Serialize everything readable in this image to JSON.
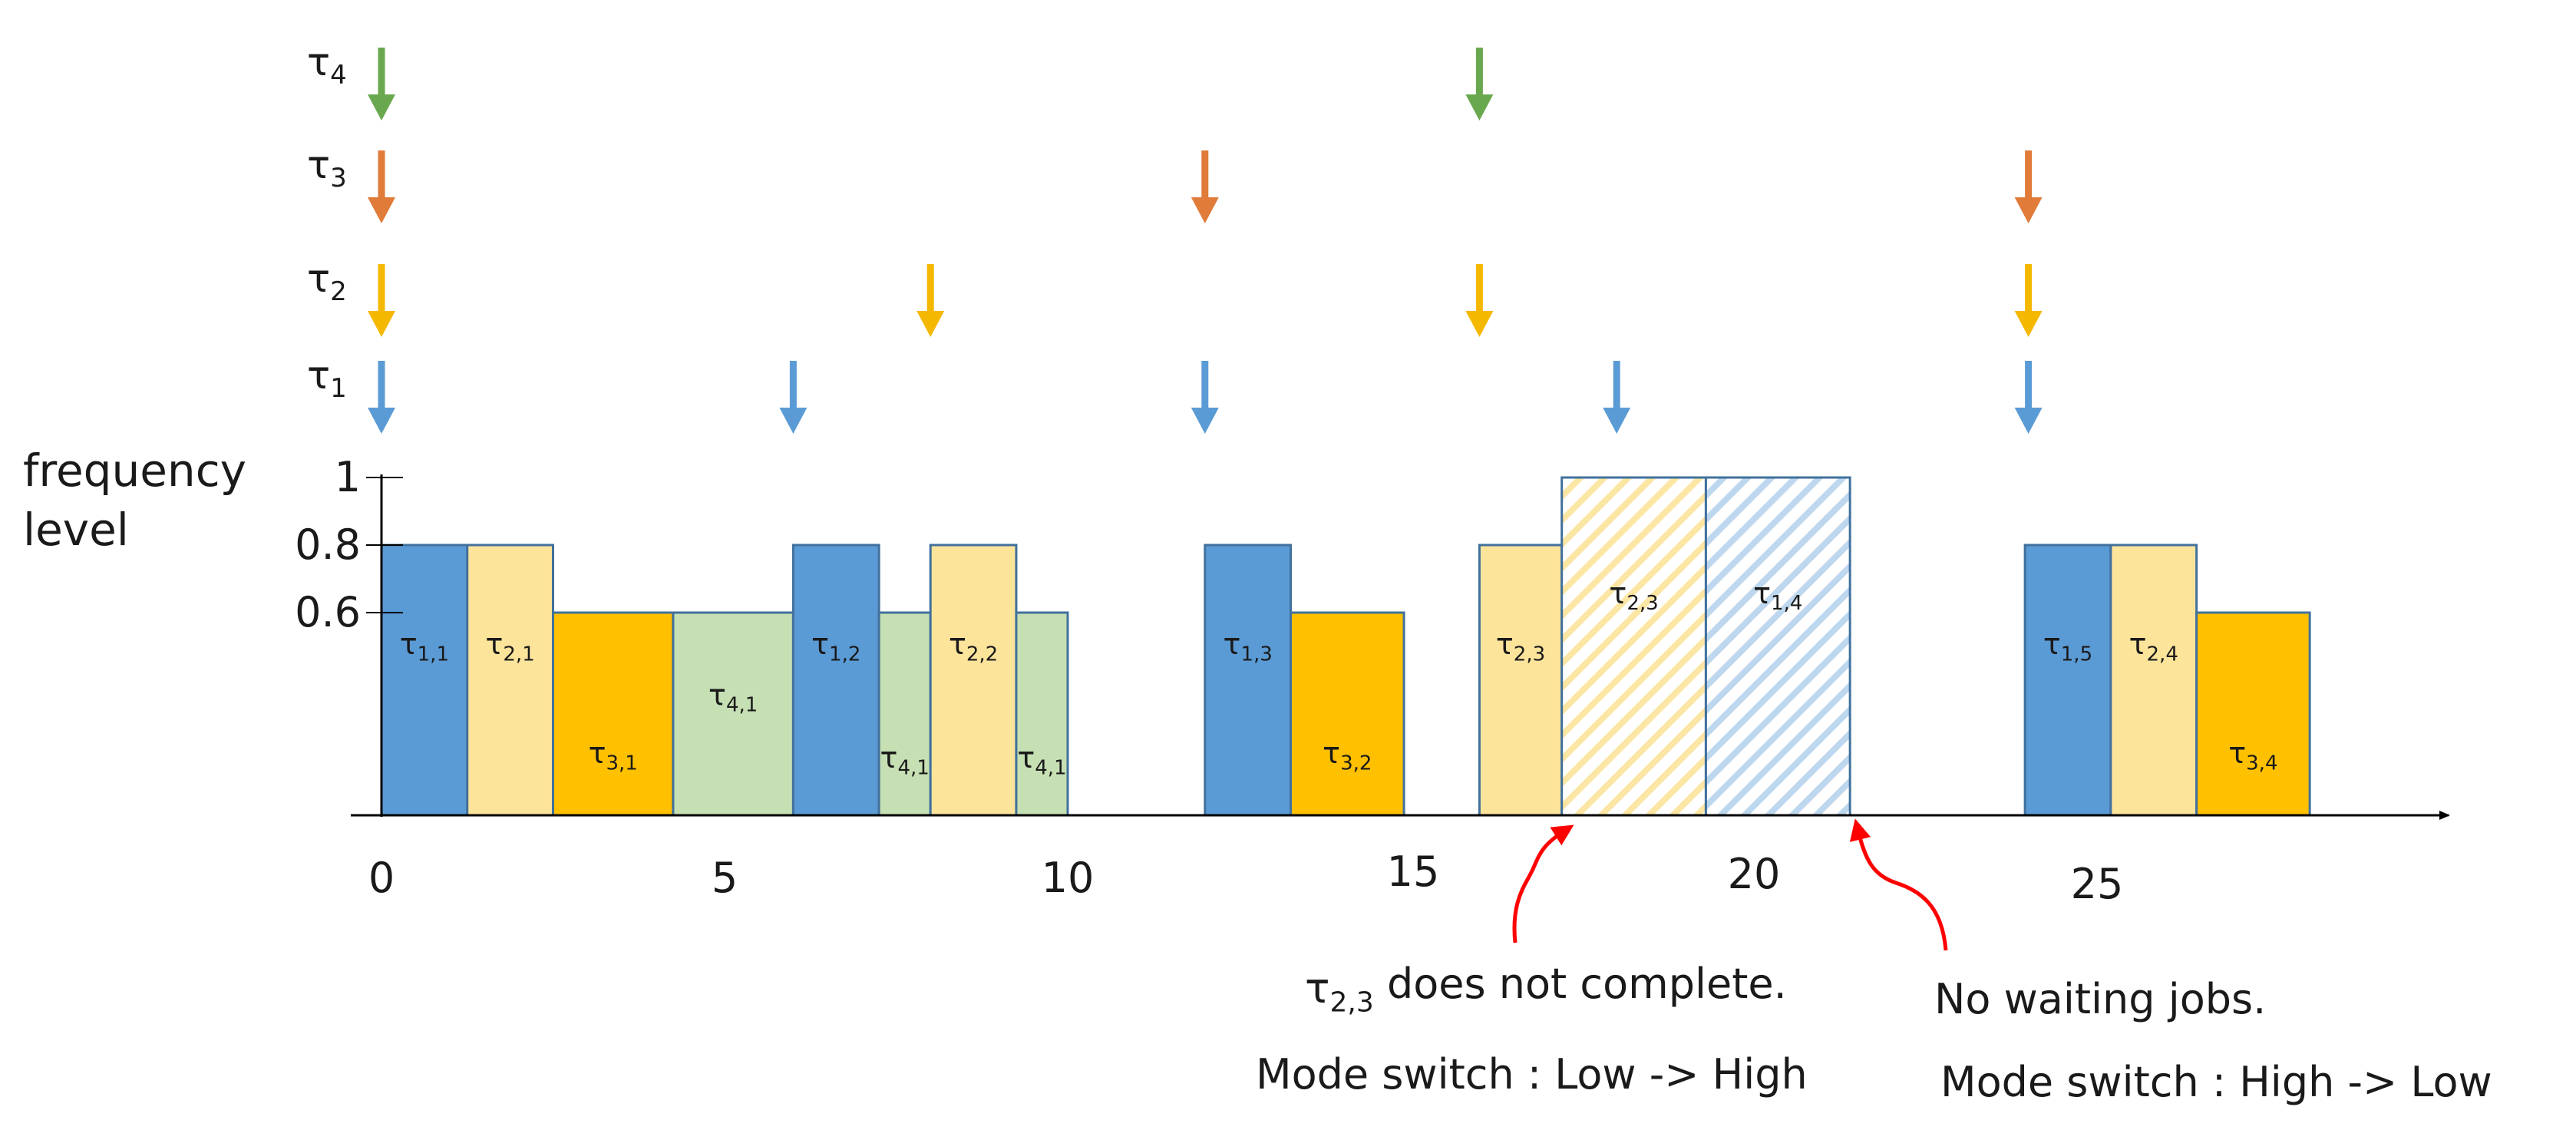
{
  "diagram": {
    "y_axis": {
      "label_line1": "frequency",
      "label_line2": "level",
      "ticks": [
        {
          "label": "1",
          "value": 1.0
        },
        {
          "label": "0.8",
          "value": 0.8
        },
        {
          "label": "0.6",
          "value": 0.6
        }
      ]
    },
    "x_axis": {
      "ticks": [
        {
          "label": "0",
          "value": 0
        },
        {
          "label": "5",
          "value": 5
        },
        {
          "label": "10",
          "value": 10
        },
        {
          "label": "15",
          "value": 15
        },
        {
          "label": "20",
          "value": 20
        },
        {
          "label": "25",
          "value": 25
        }
      ]
    },
    "tasks": [
      {
        "id": "t4",
        "symbol": "τ",
        "sub": "4",
        "color": "#6aa84f",
        "releases": [
          0,
          16
        ]
      },
      {
        "id": "t3",
        "symbol": "τ",
        "sub": "3",
        "color": "#e07b39",
        "releases": [
          0,
          12,
          24
        ]
      },
      {
        "id": "t2",
        "symbol": "τ",
        "sub": "2",
        "color": "#f5b800",
        "releases": [
          0,
          8,
          16,
          24
        ]
      },
      {
        "id": "t1",
        "symbol": "τ",
        "sub": "1",
        "color": "#5b9bd5",
        "releases": [
          0,
          6,
          12,
          18,
          24
        ]
      }
    ],
    "jobs": [
      {
        "symbol": "τ",
        "sub": "1,1",
        "start": 0.0,
        "end": 1.25,
        "freq": 0.8,
        "fill": "#5b9bd5",
        "pattern": "none"
      },
      {
        "symbol": "τ",
        "sub": "2,1",
        "start": 1.25,
        "end": 2.5,
        "freq": 0.8,
        "fill": "#fde49b",
        "pattern": "none"
      },
      {
        "symbol": "τ",
        "sub": "3,1",
        "start": 2.5,
        "end": 4.25,
        "freq": 0.6,
        "fill": "#ffc000",
        "pattern": "none"
      },
      {
        "symbol": "τ",
        "sub": "4,1",
        "start": 4.25,
        "end": 6.0,
        "freq": 0.6,
        "fill": "#c6e0b4",
        "pattern": "none"
      },
      {
        "symbol": "τ",
        "sub": "1,2",
        "start": 6.0,
        "end": 7.25,
        "freq": 0.8,
        "fill": "#5b9bd5",
        "pattern": "none"
      },
      {
        "symbol": "τ",
        "sub": "4,1",
        "start": 7.25,
        "end": 8.0,
        "freq": 0.6,
        "fill": "#c6e0b4",
        "pattern": "none"
      },
      {
        "symbol": "τ",
        "sub": "2,2",
        "start": 8.0,
        "end": 9.25,
        "freq": 0.8,
        "fill": "#fde49b",
        "pattern": "none"
      },
      {
        "symbol": "τ",
        "sub": "4,1",
        "start": 9.25,
        "end": 10.0,
        "freq": 0.6,
        "fill": "#c6e0b4",
        "pattern": "none"
      },
      {
        "symbol": "τ",
        "sub": "1,3",
        "start": 12.0,
        "end": 13.25,
        "freq": 0.8,
        "fill": "#5b9bd5",
        "pattern": "none"
      },
      {
        "symbol": "τ",
        "sub": "3,2",
        "start": 13.25,
        "end": 14.9,
        "freq": 0.6,
        "fill": "#ffc000",
        "pattern": "none"
      },
      {
        "symbol": "τ",
        "sub": "2,3",
        "start": 16.0,
        "end": 17.2,
        "freq": 0.8,
        "fill": "#fde49b",
        "pattern": "none"
      },
      {
        "symbol": "τ",
        "sub": "2,3",
        "start": 17.2,
        "end": 19.3,
        "freq": 1.0,
        "fill": "#ffffff",
        "pattern": "yellow"
      },
      {
        "symbol": "τ",
        "sub": "1,4",
        "start": 19.3,
        "end": 21.4,
        "freq": 1.0,
        "fill": "#ffffff",
        "pattern": "blue"
      },
      {
        "symbol": "τ",
        "sub": "1,5",
        "start": 23.95,
        "end": 25.2,
        "freq": 0.8,
        "fill": "#5b9bd5",
        "pattern": "none"
      },
      {
        "symbol": "τ",
        "sub": "2,4",
        "start": 25.2,
        "end": 26.45,
        "freq": 0.8,
        "fill": "#fde49b",
        "pattern": "none"
      },
      {
        "symbol": "τ",
        "sub": "3,4",
        "start": 26.45,
        "end": 28.1,
        "freq": 0.6,
        "fill": "#ffc000",
        "pattern": "none"
      }
    ],
    "annotations": [
      {
        "id": "mode-low-high",
        "at": 17.2,
        "line1_symbol": "τ",
        "line1_sub": "2,3",
        "line1_rest": " does not complete.",
        "line2": "Mode switch : Low -> High"
      },
      {
        "id": "mode-high-low",
        "at": 21.4,
        "line1": "No waiting jobs.",
        "line2": "Mode switch : High -> Low"
      }
    ],
    "colors": {
      "axis": "#000000",
      "bar_border": "#41719c",
      "annotation_arrow": "#ff0000"
    }
  }
}
